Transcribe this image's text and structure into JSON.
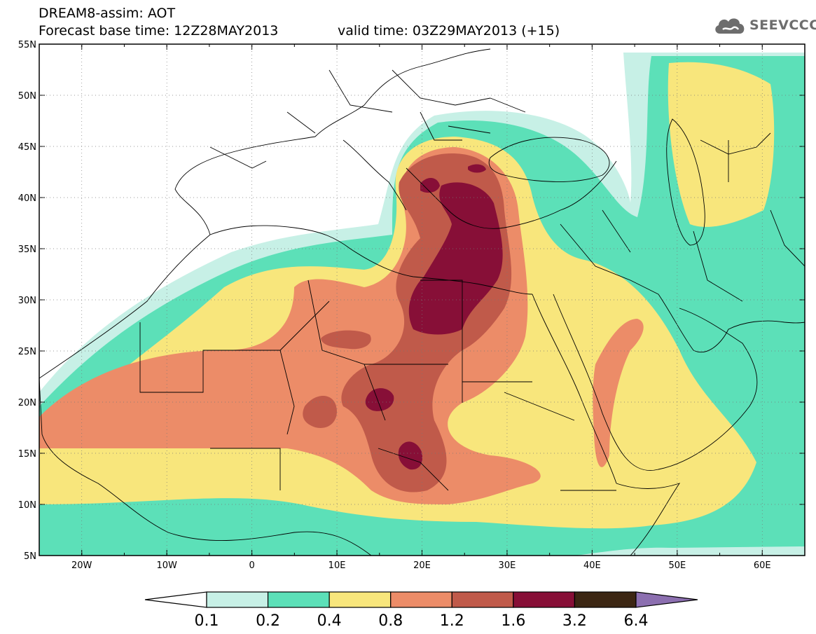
{
  "header": {
    "line1": "DREAM8-assim: AOT",
    "line2": "Forecast base time: 12Z28MAY2013",
    "line3": "valid time: 03Z29MAY2013 (+15)"
  },
  "logo": {
    "text": "SEEVCCC",
    "icon": "cloud-icon",
    "color": "#6d6d6d"
  },
  "map": {
    "lon_range": [
      -25,
      65
    ],
    "lat_range": [
      5,
      55
    ],
    "lon_ticks": [
      "20W",
      "10W",
      "0",
      "10E",
      "20E",
      "30E",
      "40E",
      "50E",
      "60E"
    ],
    "lat_ticks": [
      "55N",
      "50N",
      "45N",
      "40N",
      "35N",
      "30N",
      "25N",
      "20N",
      "15N",
      "10N",
      "5N"
    ]
  },
  "colorbar": {
    "levels": [
      "0.1",
      "0.2",
      "0.4",
      "0.8",
      "1.2",
      "1.6",
      "3.2",
      "6.4"
    ],
    "colors": [
      "#c7f0e6",
      "#5ce0b8",
      "#f8e67c",
      "#ec8c68",
      "#c05a4a",
      "#870f37",
      "#3c2613"
    ],
    "under_color": "#ffffff",
    "over_color": "#8c6fb0"
  }
}
